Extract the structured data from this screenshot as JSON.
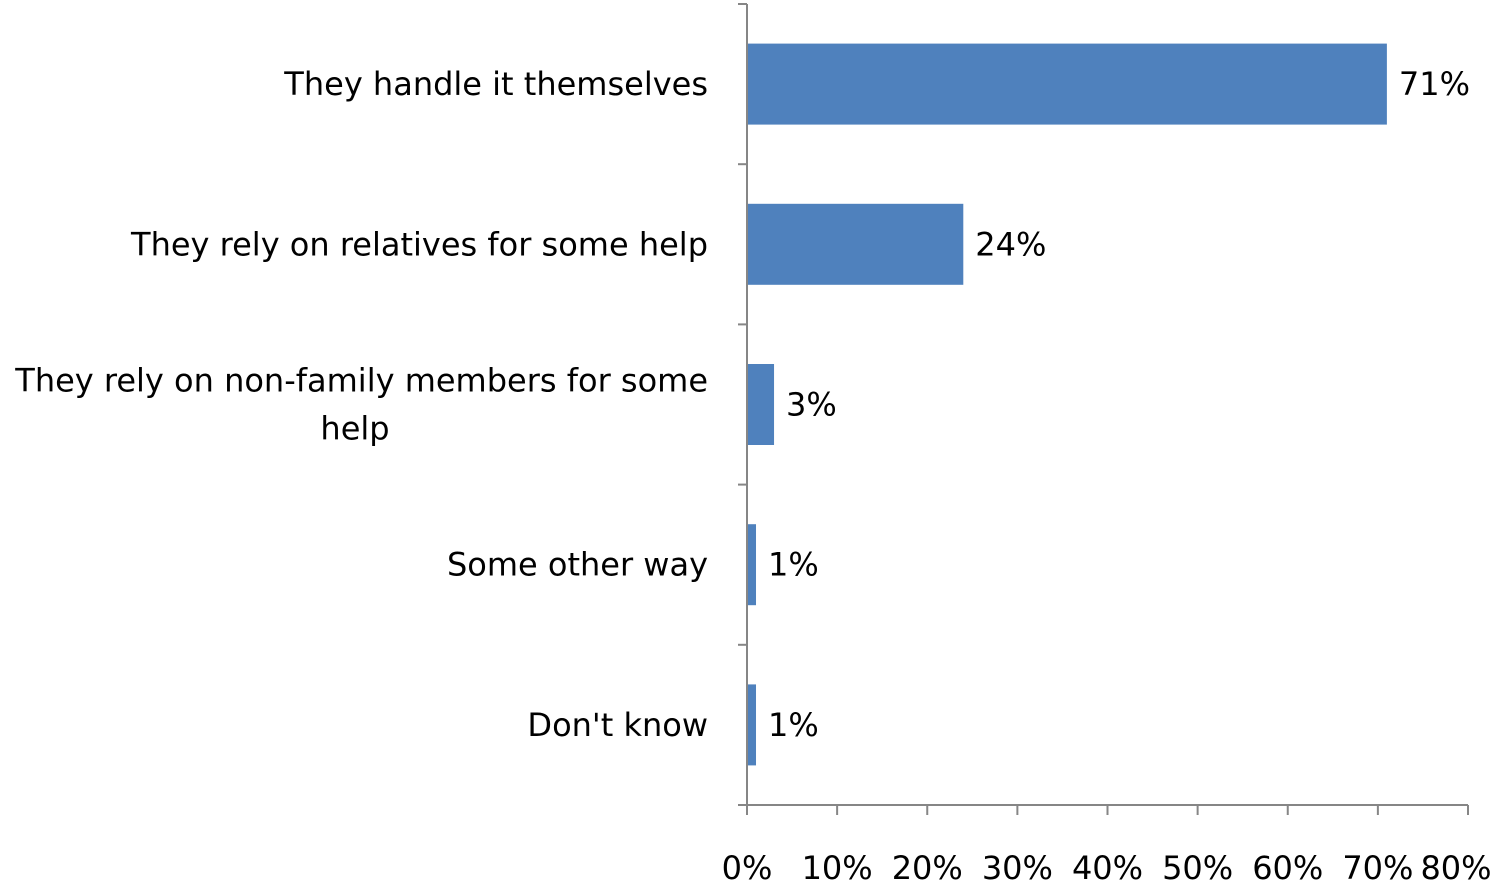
{
  "chart_data": {
    "type": "bar",
    "orientation": "horizontal",
    "categories": [
      [
        "They handle it themselves"
      ],
      [
        "They rely on relatives for some help"
      ],
      [
        "They rely on non-family members for some",
        "help"
      ],
      [
        "Some other way"
      ],
      [
        "Don't know"
      ]
    ],
    "values": [
      71,
      24,
      3,
      1,
      1
    ],
    "value_labels": [
      "71%",
      "24%",
      "3%",
      "1%",
      "1%"
    ],
    "xlim": [
      0,
      80
    ],
    "x_ticks": [
      0,
      10,
      20,
      30,
      40,
      50,
      60,
      70,
      80
    ],
    "x_tick_labels": [
      "0%",
      "10%",
      "20%",
      "30%",
      "40%",
      "50%",
      "60%",
      "70%",
      "80%"
    ],
    "bar_color": "#4F81BD",
    "grid": false,
    "legend": "none"
  }
}
